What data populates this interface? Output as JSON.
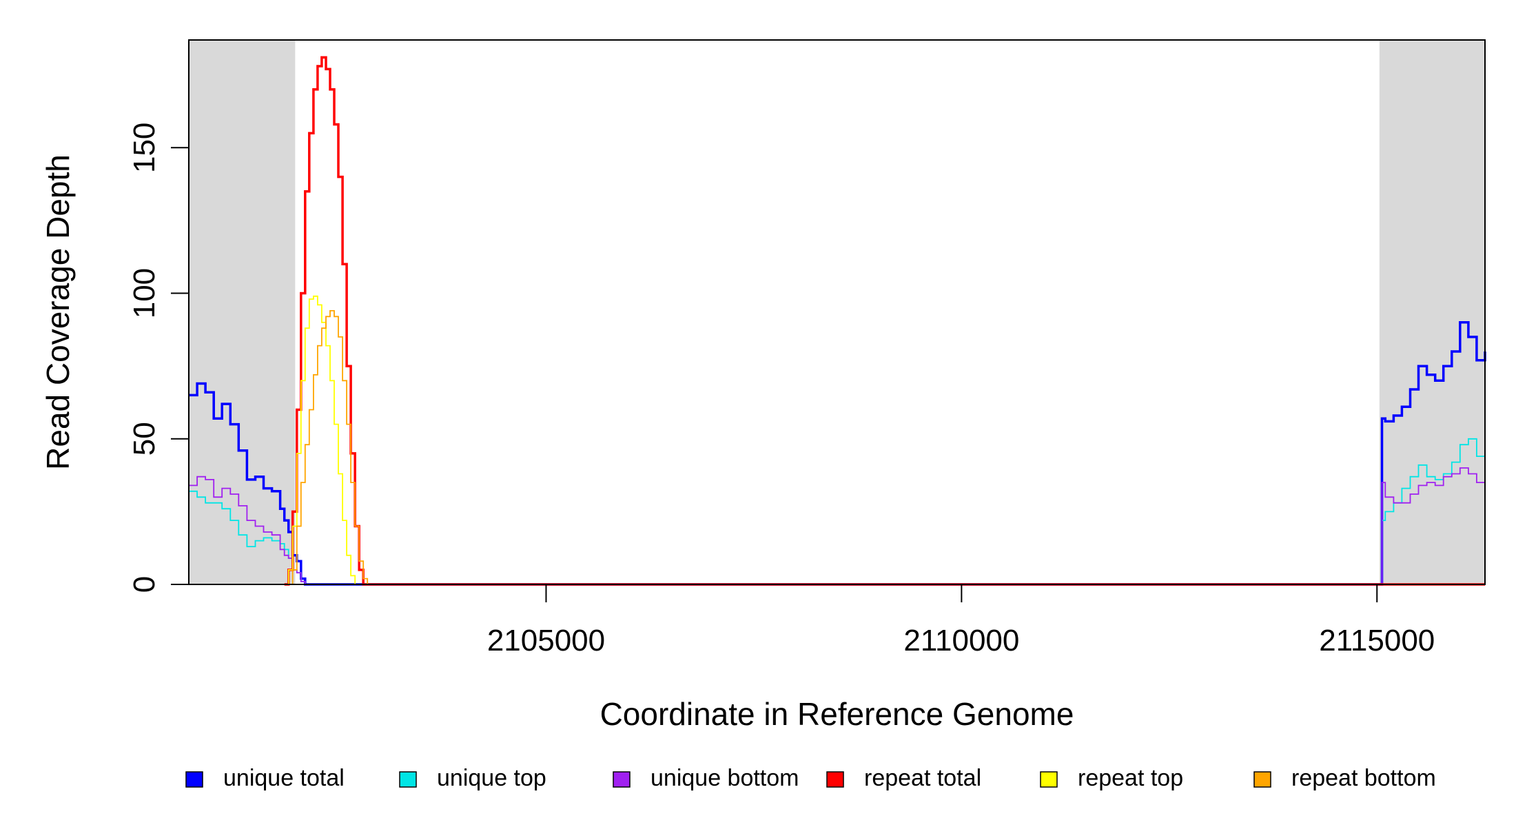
{
  "chart_data": {
    "type": "line",
    "xlabel": "Coordinate in Reference Genome",
    "ylabel": "Read Coverage Depth",
    "xlim": [
      2100700,
      2116300
    ],
    "ylim": [
      0,
      187
    ],
    "x_ticks": [
      2105000,
      2110000,
      2115000
    ],
    "x_tick_labels": [
      "2105000",
      "2110000",
      "2115000"
    ],
    "y_ticks": [
      0,
      50,
      100,
      150
    ],
    "y_tick_labels": [
      "0",
      "50",
      "100",
      "150"
    ],
    "grid": false,
    "shaded_regions": [
      {
        "x": [
          2100700,
          2101980
        ],
        "color": "#d9d9d9"
      },
      {
        "x": [
          2115030,
          2116300
        ],
        "color": "#d9d9d9"
      }
    ],
    "legend_position": "bottom",
    "series": [
      {
        "name": "unique total",
        "color": "#0000ff",
        "stroke": "thick",
        "x": [
          2100700,
          2100800,
          2100900,
          2101000,
          2101100,
          2101200,
          2101300,
          2101400,
          2101500,
          2101600,
          2101700,
          2101800,
          2101850,
          2101900,
          2101950,
          2102000,
          2102050,
          2102100,
          2115060,
          2115100,
          2115200,
          2115300,
          2115400,
          2115500,
          2115600,
          2115700,
          2115800,
          2115900,
          2116000,
          2116100,
          2116200,
          2116300
        ],
        "y": [
          65,
          69,
          66,
          57,
          62,
          55,
          46,
          36,
          37,
          33,
          32,
          26,
          22,
          18,
          10,
          8,
          2,
          0,
          57,
          56,
          58,
          61,
          67,
          75,
          72,
          70,
          75,
          80,
          90,
          85,
          77,
          80
        ]
      },
      {
        "name": "unique top",
        "color": "#00e5e5",
        "stroke": "thin",
        "x": [
          2100700,
          2100800,
          2100900,
          2101000,
          2101100,
          2101200,
          2101300,
          2101400,
          2101500,
          2101600,
          2101700,
          2101800,
          2101850,
          2101900,
          2101950,
          2102000,
          2102050,
          2102100,
          2115060,
          2115100,
          2115200,
          2115300,
          2115400,
          2115500,
          2115600,
          2115700,
          2115800,
          2115900,
          2116000,
          2116100,
          2116200,
          2116300
        ],
        "y": [
          32,
          30,
          28,
          28,
          26,
          22,
          17,
          13,
          15,
          16,
          15,
          14,
          12,
          9,
          5,
          4,
          1,
          0,
          22,
          25,
          28,
          33,
          37,
          41,
          37,
          36,
          38,
          42,
          48,
          50,
          44,
          40
        ]
      },
      {
        "name": "unique bottom",
        "color": "#a020f0",
        "stroke": "thin",
        "x": [
          2100700,
          2100800,
          2100900,
          2101000,
          2101100,
          2101200,
          2101300,
          2101400,
          2101500,
          2101600,
          2101700,
          2101800,
          2101850,
          2101900,
          2101950,
          2102000,
          2102050,
          2102100,
          2115060,
          2115100,
          2115200,
          2115300,
          2115400,
          2115500,
          2115600,
          2115700,
          2115800,
          2115900,
          2116000,
          2116100,
          2116200,
          2116300
        ],
        "y": [
          34,
          37,
          36,
          30,
          33,
          31,
          27,
          22,
          20,
          18,
          17,
          12,
          10,
          9,
          5,
          4,
          1,
          0,
          35,
          30,
          28,
          28,
          31,
          34,
          35,
          34,
          37,
          38,
          40,
          38,
          35,
          33
        ]
      },
      {
        "name": "repeat total",
        "color": "#ff0000",
        "stroke": "thick",
        "x": [
          2101850,
          2101900,
          2101950,
          2102000,
          2102050,
          2102100,
          2102150,
          2102200,
          2102250,
          2102300,
          2102350,
          2102400,
          2102450,
          2102500,
          2102550,
          2102600,
          2102650,
          2102700,
          2102750,
          2102800,
          2102850,
          2102900,
          2102950,
          2102980,
          2103000,
          2116300
        ],
        "y": [
          0,
          5,
          25,
          60,
          100,
          135,
          155,
          170,
          178,
          181,
          177,
          170,
          158,
          140,
          110,
          75,
          45,
          20,
          5,
          0,
          0,
          0,
          0,
          0,
          0,
          0
        ]
      },
      {
        "name": "repeat top",
        "color": "#ffff00",
        "stroke": "thin",
        "x": [
          2101850,
          2101900,
          2101950,
          2102000,
          2102050,
          2102100,
          2102150,
          2102200,
          2102250,
          2102300,
          2102350,
          2102400,
          2102450,
          2102500,
          2102550,
          2102600,
          2102650,
          2102700,
          2102750,
          2102800,
          2102850,
          2102900,
          2102950,
          2103000,
          2116300
        ],
        "y": [
          0,
          5,
          20,
          45,
          70,
          88,
          98,
          99,
          96,
          90,
          82,
          70,
          55,
          38,
          22,
          10,
          3,
          0,
          0,
          0,
          0,
          0,
          0,
          0,
          0
        ]
      },
      {
        "name": "repeat bottom",
        "color": "#ffa500",
        "stroke": "thin",
        "x": [
          2101850,
          2101900,
          2101950,
          2102000,
          2102050,
          2102100,
          2102150,
          2102200,
          2102250,
          2102300,
          2102350,
          2102400,
          2102450,
          2102500,
          2102550,
          2102600,
          2102650,
          2102700,
          2102750,
          2102800,
          2102850,
          2102900,
          2102950,
          2103000,
          2116300
        ],
        "y": [
          0,
          0,
          5,
          20,
          35,
          48,
          60,
          72,
          82,
          88,
          92,
          94,
          92,
          85,
          70,
          55,
          35,
          20,
          8,
          2,
          0,
          0,
          0,
          0,
          0
        ]
      }
    ]
  }
}
